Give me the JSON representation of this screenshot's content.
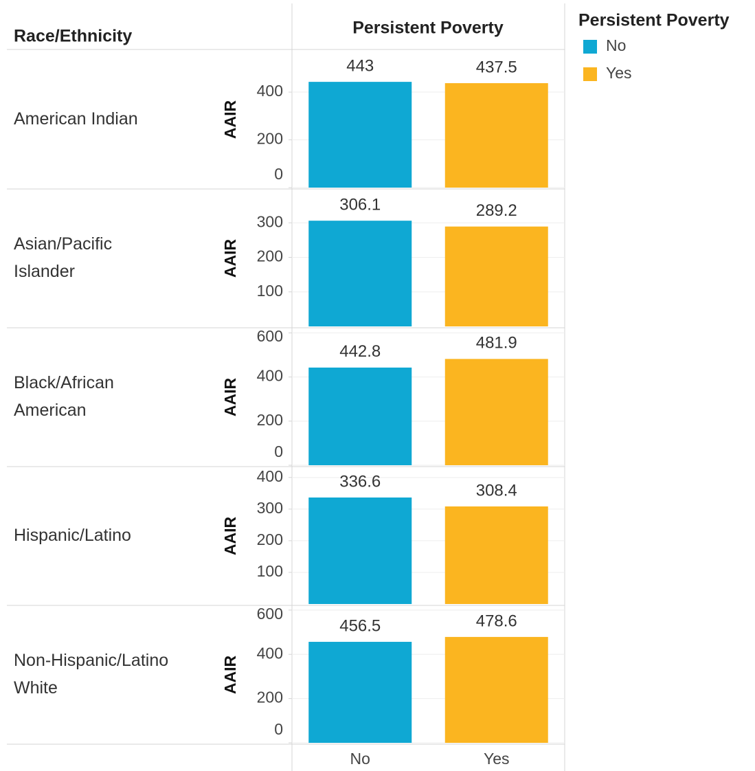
{
  "chart_data": {
    "type": "bar",
    "row_header": "Race/Ethnicity",
    "column_header": "Persistent Poverty",
    "y_label": "AAIR",
    "categories": [
      "No",
      "Yes"
    ],
    "colors": [
      "#0fa8d3",
      "#fbb520"
    ],
    "legend": {
      "title": "Persistent Poverty",
      "position": "right"
    },
    "grid": true,
    "panels": [
      {
        "name": "American Indian",
        "values": [
          443,
          437.5
        ],
        "ylim": [
          0,
          570
        ],
        "yticks": [
          0,
          200,
          400
        ]
      },
      {
        "name": "Asian/Pacific Islander",
        "values": [
          306.1,
          289.2
        ],
        "ylim": [
          0,
          394
        ],
        "yticks": [
          100,
          200,
          300
        ]
      },
      {
        "name": "Black/African American",
        "values": [
          442.8,
          481.9
        ],
        "ylim": [
          0,
          617
        ],
        "yticks": [
          0,
          200,
          400,
          600
        ]
      },
      {
        "name": "Hispanic/Latino",
        "values": [
          336.6,
          308.4
        ],
        "ylim": [
          0,
          430
        ],
        "yticks": [
          100,
          200,
          300,
          400
        ]
      },
      {
        "name": "Non-Hispanic/Latino White",
        "values": [
          456.5,
          478.6
        ],
        "ylim": [
          0,
          615
        ],
        "yticks": [
          0,
          200,
          400,
          600
        ]
      }
    ]
  }
}
